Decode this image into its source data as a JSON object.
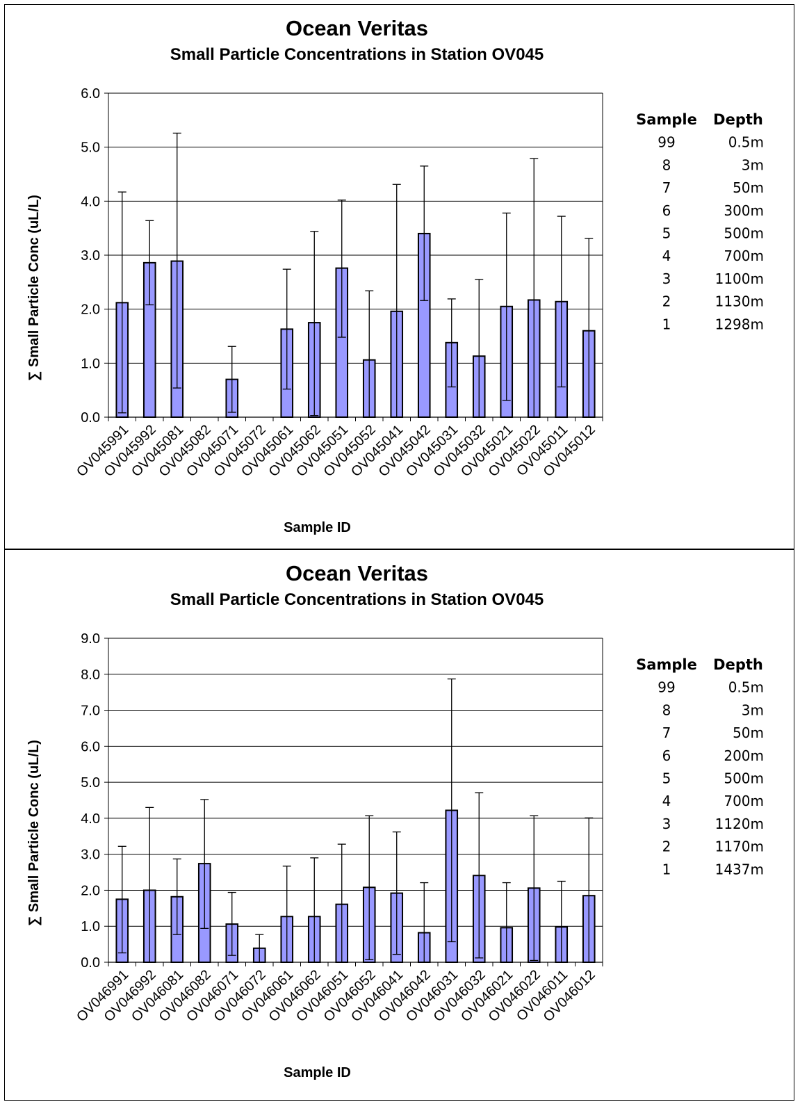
{
  "chart_data": [
    {
      "type": "bar",
      "title": "Ocean Veritas",
      "subtitle": "Small Particle Concentrations in Station OV045",
      "xlabel": "Sample ID",
      "ylabel": "∑ Small Particle Conc  (uL/L)",
      "ylim": [
        0,
        6
      ],
      "yticks": [
        "0.0",
        "1.0",
        "2.0",
        "3.0",
        "4.0",
        "5.0",
        "6.0"
      ],
      "grid": true,
      "bar_color": "#9999ff",
      "categories": [
        "OV045991",
        "OV045992",
        "OV045081",
        "OV045082",
        "OV045071",
        "OV045072",
        "OV045061",
        "OV045062",
        "OV045051",
        "OV045052",
        "OV045041",
        "OV045042",
        "OV045031",
        "OV045032",
        "OV045021",
        "OV045022",
        "OV045011",
        "OV045012"
      ],
      "values": [
        2.12,
        2.86,
        2.89,
        null,
        0.7,
        null,
        1.63,
        1.75,
        2.76,
        1.06,
        1.96,
        3.4,
        1.38,
        1.13,
        2.05,
        2.17,
        2.14,
        1.6
      ],
      "error_upper": [
        4.17,
        3.64,
        5.26,
        null,
        1.31,
        null,
        2.74,
        3.44,
        4.02,
        2.34,
        4.31,
        4.65,
        2.19,
        2.55,
        3.78,
        4.79,
        3.72,
        3.31
      ],
      "error_lower": [
        0.08,
        2.08,
        0.54,
        null,
        0.09,
        null,
        0.52,
        0.03,
        1.48,
        null,
        null,
        2.16,
        0.56,
        null,
        0.31,
        null,
        0.56,
        null
      ],
      "table": {
        "headers": [
          "Sample",
          "Depth"
        ],
        "rows": [
          [
            "99",
            "0.5m"
          ],
          [
            "8",
            "3m"
          ],
          [
            "7",
            "50m"
          ],
          [
            "6",
            "300m"
          ],
          [
            "5",
            "500m"
          ],
          [
            "4",
            "700m"
          ],
          [
            "3",
            "1100m"
          ],
          [
            "2",
            "1130m"
          ],
          [
            "1",
            "1298m"
          ]
        ]
      }
    },
    {
      "type": "bar",
      "title": "Ocean Veritas",
      "subtitle": "Small Particle Concentrations in Station OV045",
      "xlabel": "Sample ID",
      "ylabel": "∑ Small Particle Conc  (uL/L)",
      "ylim": [
        0,
        9
      ],
      "yticks": [
        "0.0",
        "1.0",
        "2.0",
        "3.0",
        "4.0",
        "5.0",
        "6.0",
        "7.0",
        "8.0",
        "9.0"
      ],
      "grid": true,
      "bar_color": "#9999ff",
      "categories": [
        "OV046991",
        "OV046992",
        "OV046081",
        "OV046082",
        "OV046071",
        "OV046072",
        "OV046061",
        "OV046062",
        "OV046051",
        "OV046052",
        "OV046041",
        "OV046042",
        "OV046031",
        "OV046032",
        "OV046021",
        "OV046022",
        "OV046011",
        "OV046012"
      ],
      "values": [
        1.75,
        2.0,
        1.82,
        2.74,
        1.06,
        0.39,
        1.27,
        1.27,
        1.61,
        2.08,
        1.92,
        0.82,
        4.22,
        2.41,
        0.96,
        2.06,
        0.98,
        1.85
      ],
      "error_upper": [
        3.22,
        4.3,
        2.87,
        4.52,
        1.94,
        0.77,
        2.67,
        2.9,
        3.28,
        4.07,
        3.62,
        2.21,
        7.87,
        4.71,
        2.21,
        4.07,
        2.25,
        4.01
      ],
      "error_lower": [
        0.26,
        null,
        0.77,
        0.94,
        0.19,
        null,
        null,
        null,
        null,
        0.07,
        0.22,
        null,
        0.57,
        0.12,
        null,
        0.05,
        null,
        null
      ],
      "table": {
        "headers": [
          "Sample",
          "Depth"
        ],
        "rows": [
          [
            "99",
            "0.5m"
          ],
          [
            "8",
            "3m"
          ],
          [
            "7",
            "50m"
          ],
          [
            "6",
            "200m"
          ],
          [
            "5",
            "500m"
          ],
          [
            "4",
            "700m"
          ],
          [
            "3",
            "1120m"
          ],
          [
            "2",
            "1170m"
          ],
          [
            "1",
            "1437m"
          ]
        ]
      }
    }
  ]
}
